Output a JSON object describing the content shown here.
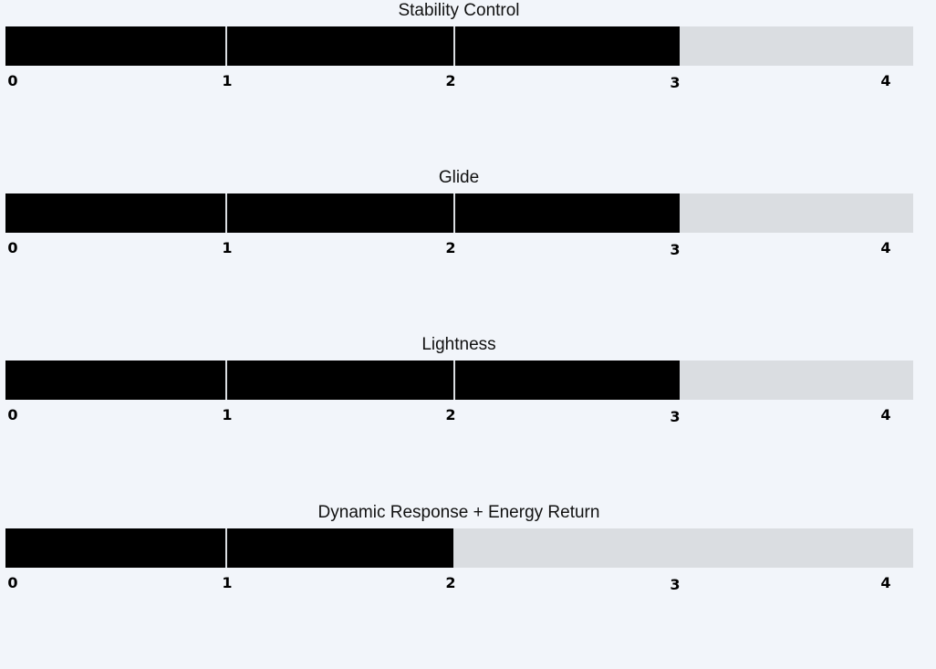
{
  "chart_data": [
    {
      "type": "bar",
      "title": "Stability Control",
      "value": 3,
      "xlim": [
        0,
        4
      ],
      "ticks": [
        "0",
        "1",
        "2",
        "3",
        "4"
      ]
    },
    {
      "type": "bar",
      "title": "Glide",
      "value": 3,
      "xlim": [
        0,
        4
      ],
      "ticks": [
        "0",
        "1",
        "2",
        "3",
        "4"
      ]
    },
    {
      "type": "bar",
      "title": "Lightness",
      "value": 3,
      "xlim": [
        0,
        4
      ],
      "ticks": [
        "0",
        "1",
        "2",
        "3",
        "4"
      ]
    },
    {
      "type": "bar",
      "title": "Dynamic Response + Energy Return",
      "value": 2,
      "xlim": [
        0,
        4
      ],
      "ticks": [
        "0",
        "1",
        "2",
        "3",
        "4"
      ]
    }
  ],
  "colors": {
    "fill": "#000000",
    "track": "#dadde1",
    "background": "#f2f5fa",
    "separator": "#e6e8eb"
  }
}
